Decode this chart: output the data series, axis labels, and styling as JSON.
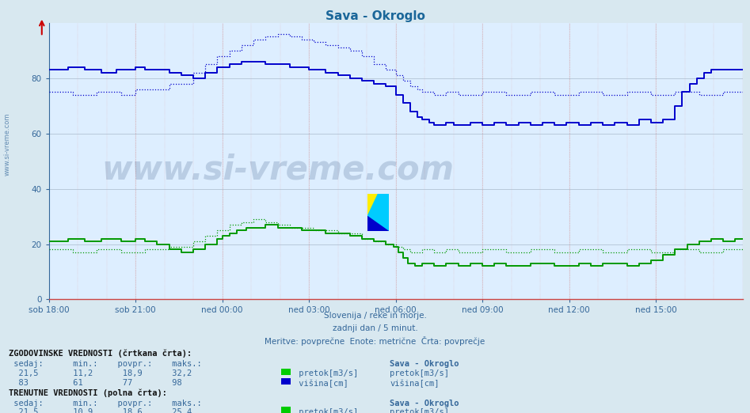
{
  "title": "Sava - Okroglo",
  "title_color": "#1a6699",
  "bg_color": "#d8e8f0",
  "plot_bg_color": "#ddeeff",
  "grid_color_h": "#aabbcc",
  "grid_color_v": "#cc8888",
  "tick_color": "#336699",
  "x_labels": [
    "sob 18:00",
    "sob 21:00",
    "ned 00:00",
    "ned 03:00",
    "ned 06:00",
    "ned 09:00",
    "ned 12:00",
    "ned 15:00"
  ],
  "subtitle_line1": "Slovenija / reke in morje.",
  "subtitle_line2": "zadnji dan / 5 minut.",
  "subtitle_line3": "Meritve: povprečne  Enote: metrične  Črta: povprečje",
  "watermark": "www.si-vreme.com",
  "blue_color": "#0000cc",
  "green_color": "#009900",
  "arrow_color": "#cc0000",
  "text_color": "#336699",
  "bold_text_color": "#111111",
  "legend_green": "#00cc00",
  "legend_blue": "#0000cc",
  "logo_yellow": "#ffee00",
  "logo_cyan": "#00ccff",
  "logo_blue": "#0000cc"
}
